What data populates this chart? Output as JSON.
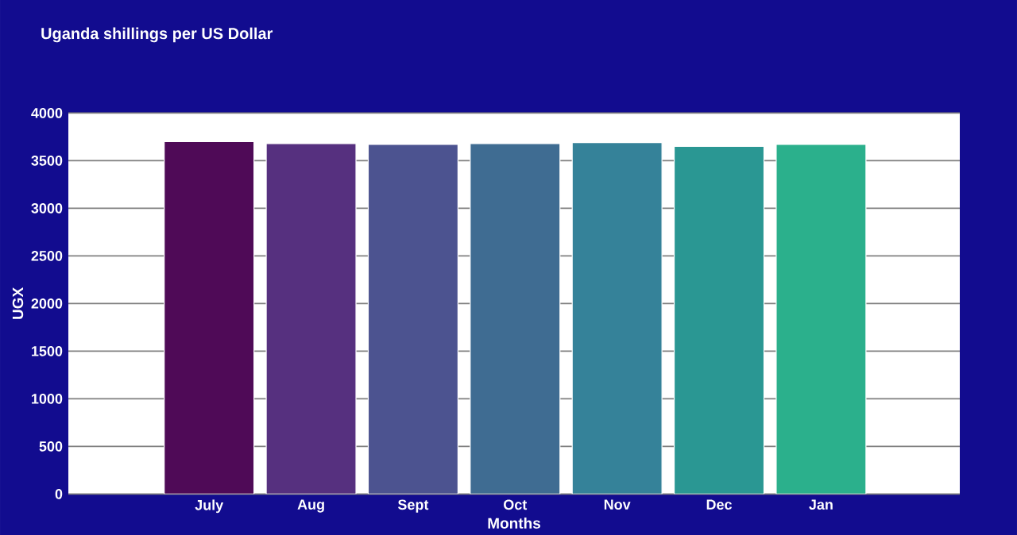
{
  "chart_data": {
    "type": "bar",
    "title": "Uganda shillings per US Dollar",
    "xlabel": "Months",
    "ylabel": "UGX",
    "categories": [
      "July",
      "Aug",
      "Sept",
      "Oct",
      "Nov",
      "Dec",
      "Jan"
    ],
    "values": [
      3700,
      3680,
      3670,
      3680,
      3690,
      3650,
      3670
    ],
    "colors": [
      "#4f0a57",
      "#56307f",
      "#4c5390",
      "#3f6c92",
      "#358299",
      "#2a9793",
      "#2bb08c"
    ],
    "ylim": [
      0,
      4000
    ],
    "yticks": [
      0,
      500,
      1000,
      1500,
      2000,
      2500,
      3000,
      3500,
      4000
    ],
    "grid": "y"
  }
}
